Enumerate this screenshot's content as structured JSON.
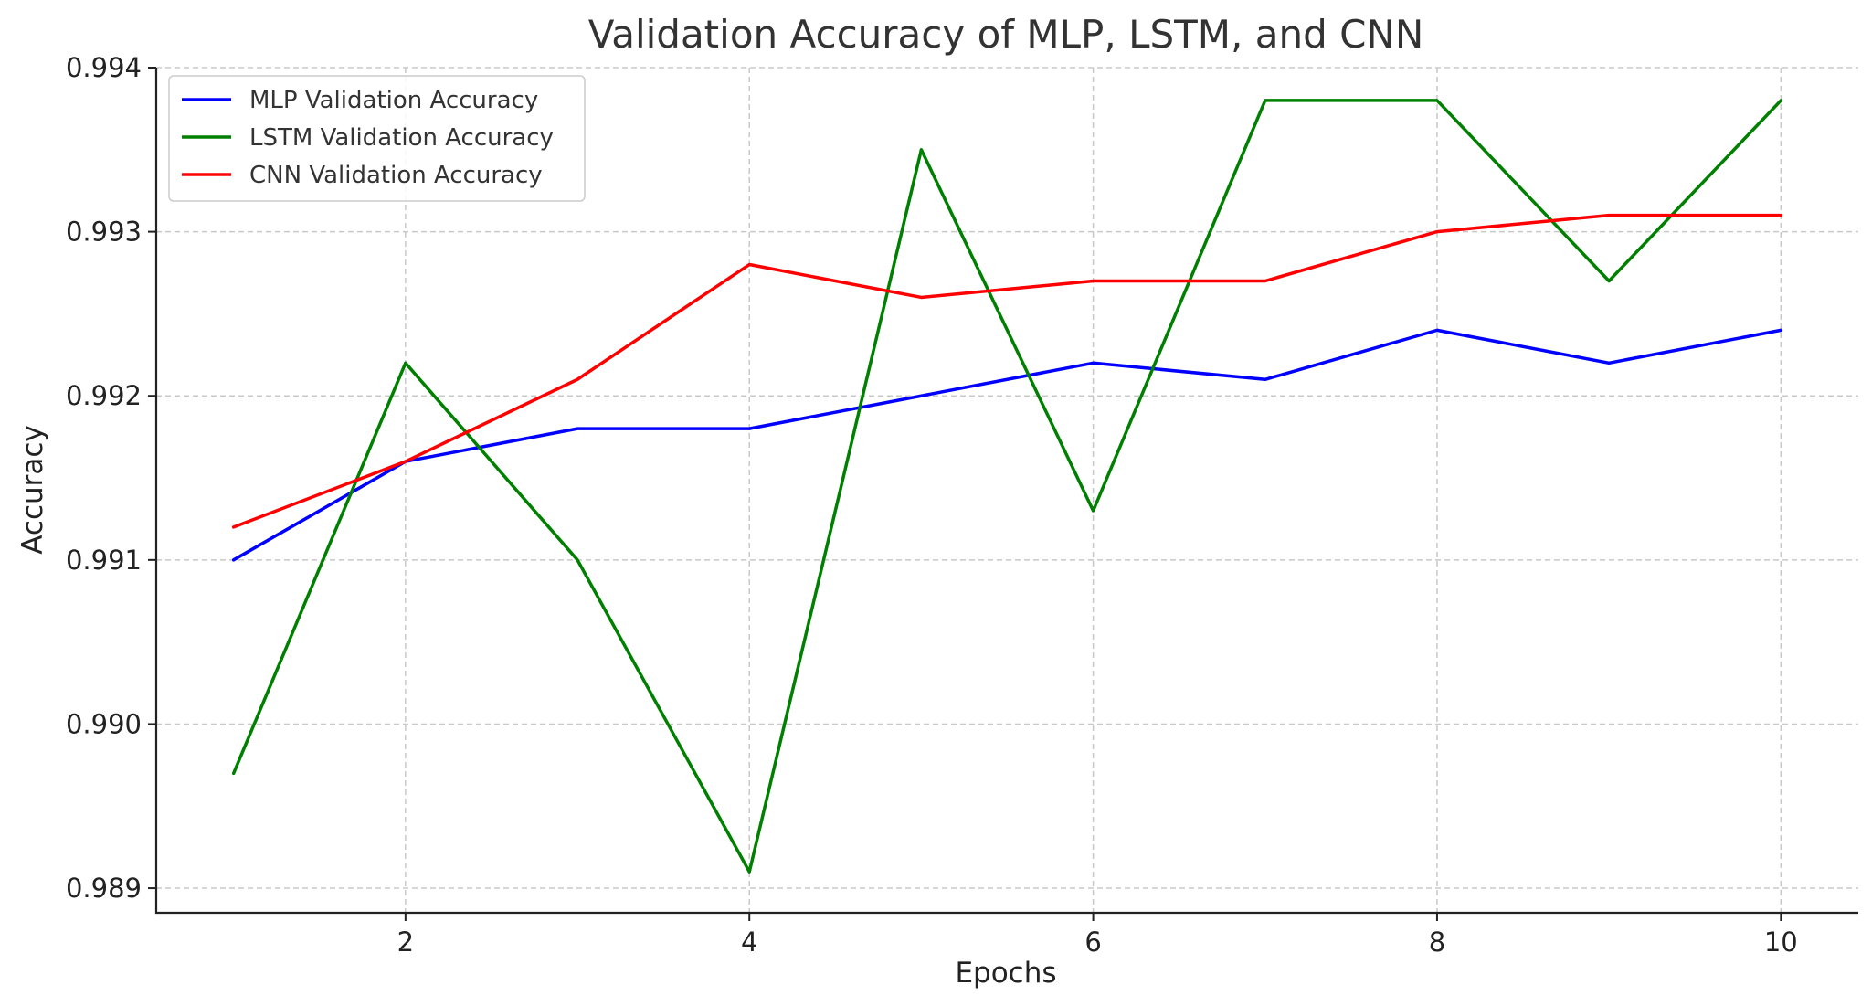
{
  "chart_data": {
    "type": "line",
    "title": "Validation Accuracy of MLP, LSTM, and CNN",
    "xlabel": "Epochs",
    "ylabel": "Accuracy",
    "x": [
      1,
      2,
      3,
      4,
      5,
      6,
      7,
      8,
      9,
      10
    ],
    "xlim": [
      0.55,
      10.45
    ],
    "ylim": [
      0.98885,
      0.994
    ],
    "xticks": [
      2,
      4,
      6,
      8,
      10
    ],
    "xtick_labels": [
      "2",
      "4",
      "6",
      "8",
      "10"
    ],
    "yticks": [
      0.989,
      0.99,
      0.991,
      0.992,
      0.993,
      0.994
    ],
    "ytick_labels": [
      "0.989",
      "0.990",
      "0.991",
      "0.992",
      "0.993",
      "0.994"
    ],
    "grid": true,
    "legend_position": "top-left",
    "series": [
      {
        "name": "MLP Validation Accuracy",
        "color": "#0000ff",
        "values": [
          0.991,
          0.9916,
          0.9918,
          0.9918,
          0.992,
          0.9922,
          0.9921,
          0.9924,
          0.9922,
          0.9924
        ]
      },
      {
        "name": "LSTM Validation Accuracy",
        "color": "#008000",
        "values": [
          0.9897,
          0.9922,
          0.991,
          0.9891,
          0.9935,
          0.9913,
          0.9938,
          0.9938,
          0.9927,
          0.9938
        ]
      },
      {
        "name": "CNN Validation Accuracy",
        "color": "#ff0000",
        "values": [
          0.9912,
          0.9916,
          0.9921,
          0.9928,
          0.9926,
          0.9927,
          0.9927,
          0.993,
          0.9931,
          0.9931
        ]
      }
    ]
  }
}
